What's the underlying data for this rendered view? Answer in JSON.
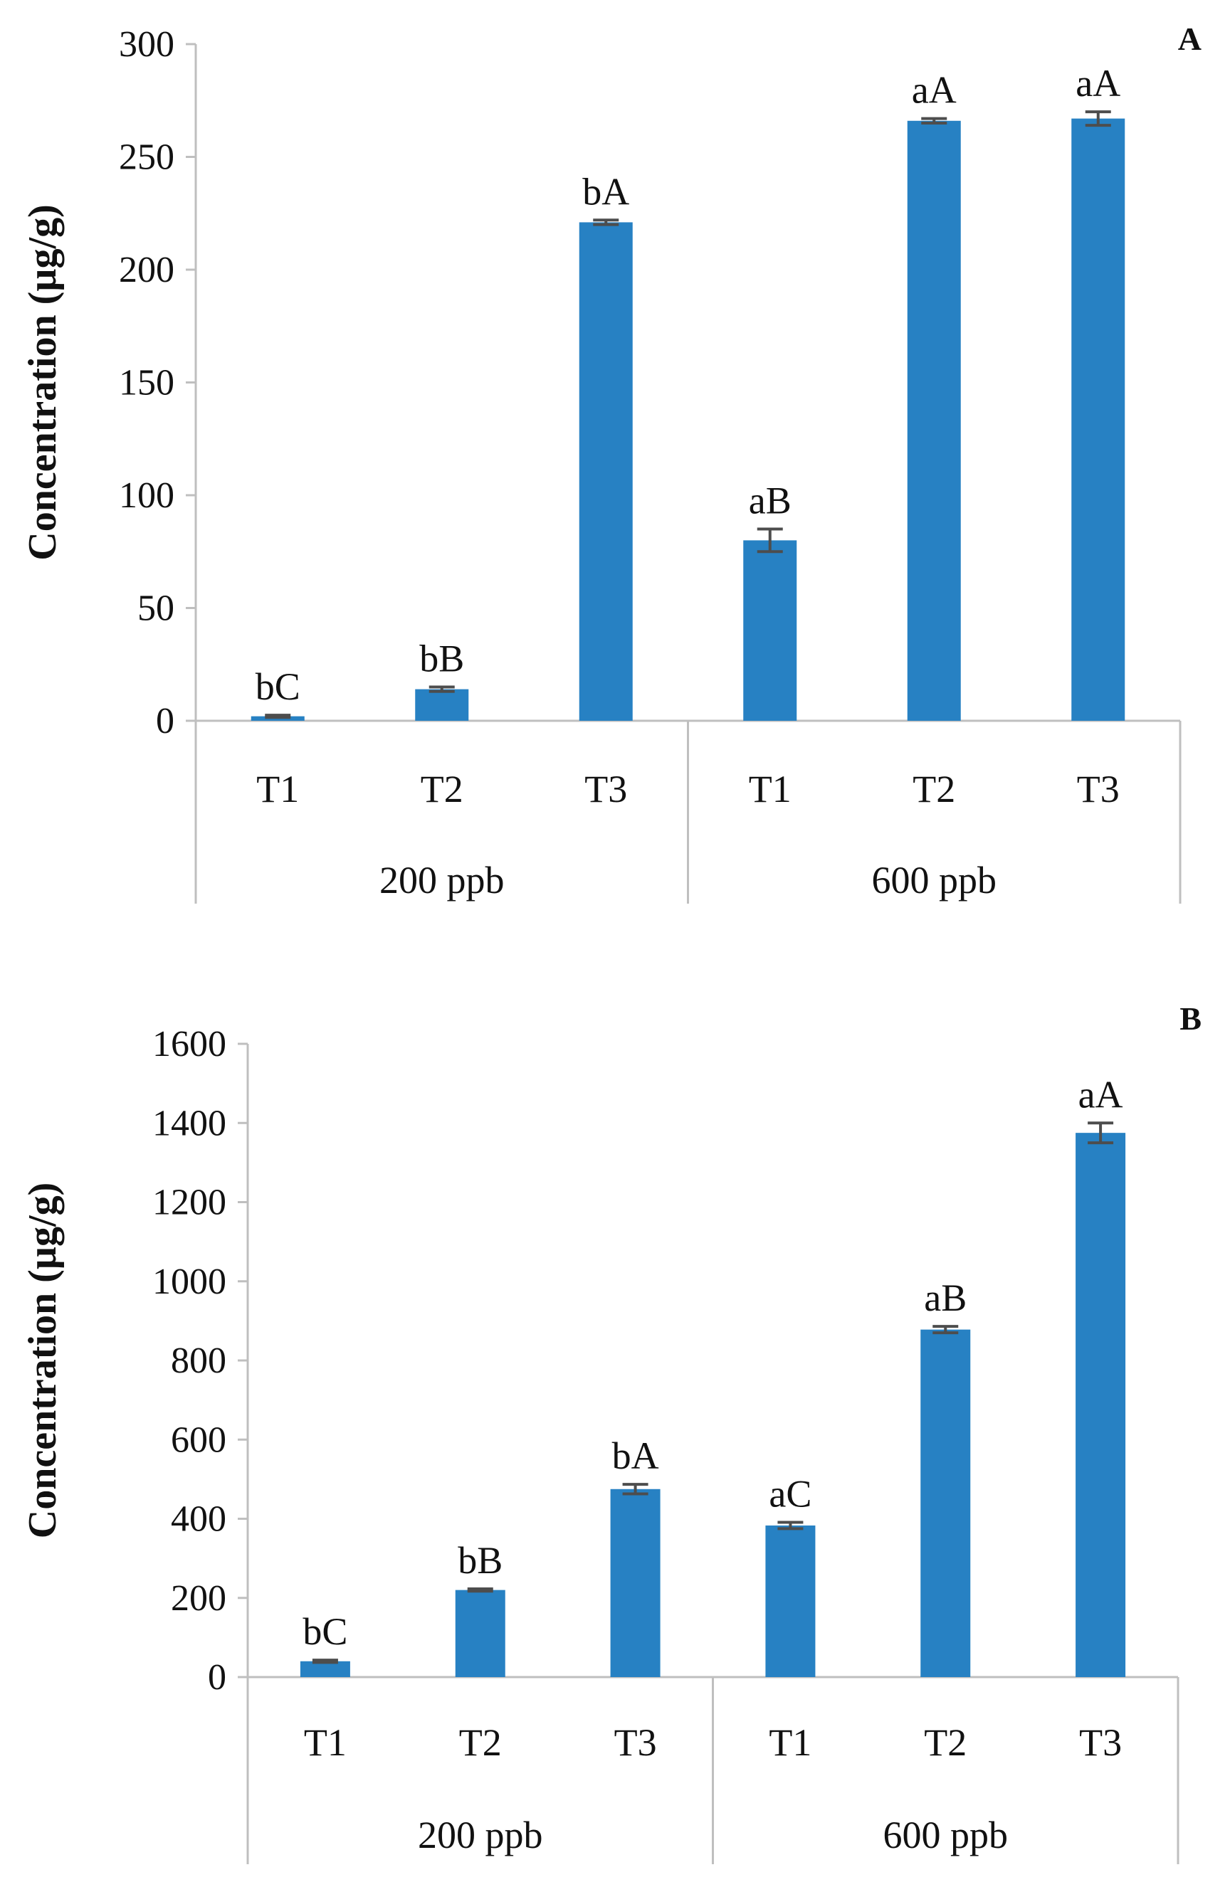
{
  "chart_data": [
    {
      "type": "bar",
      "panel": "A",
      "ylabel": "Concentration (µg/g)",
      "xlabel": "",
      "ylim": [
        0,
        300
      ],
      "yticks": [
        0,
        50,
        100,
        150,
        200,
        250,
        300
      ],
      "groups": [
        "200 ppb",
        "600 ppb"
      ],
      "categories": [
        "T1",
        "T2",
        "T3",
        "T1",
        "T2",
        "T3"
      ],
      "category_group": [
        "200 ppb",
        "200 ppb",
        "200 ppb",
        "600 ppb",
        "600 ppb",
        "600 ppb"
      ],
      "values": [
        2,
        14,
        221,
        80,
        266,
        267
      ],
      "errors": [
        0.5,
        1,
        1,
        5,
        1,
        3
      ],
      "letters": [
        "bC",
        "bB",
        "bA",
        "aB",
        "aA",
        "aA"
      ],
      "color": "#2781c3",
      "error_color": "#4d4d4d"
    },
    {
      "type": "bar",
      "panel": "B",
      "ylabel": "Concentration (µg/g)",
      "xlabel": "",
      "ylim": [
        0,
        1600
      ],
      "yticks": [
        0,
        200,
        400,
        600,
        800,
        1000,
        1200,
        1400,
        1600
      ],
      "groups": [
        "200 ppb",
        "600 ppb"
      ],
      "categories": [
        "T1",
        "T2",
        "T3",
        "T1",
        "T2",
        "T3"
      ],
      "category_group": [
        "200 ppb",
        "200 ppb",
        "200 ppb",
        "600 ppb",
        "600 ppb",
        "600 ppb"
      ],
      "values": [
        40,
        220,
        475,
        383,
        878,
        1375
      ],
      "errors": [
        3,
        3,
        12,
        8,
        8,
        25
      ],
      "letters": [
        "bC",
        "bB",
        "bA",
        "aC",
        "aB",
        "aA"
      ],
      "color": "#2781c3",
      "error_color": "#4d4d4d"
    }
  ]
}
